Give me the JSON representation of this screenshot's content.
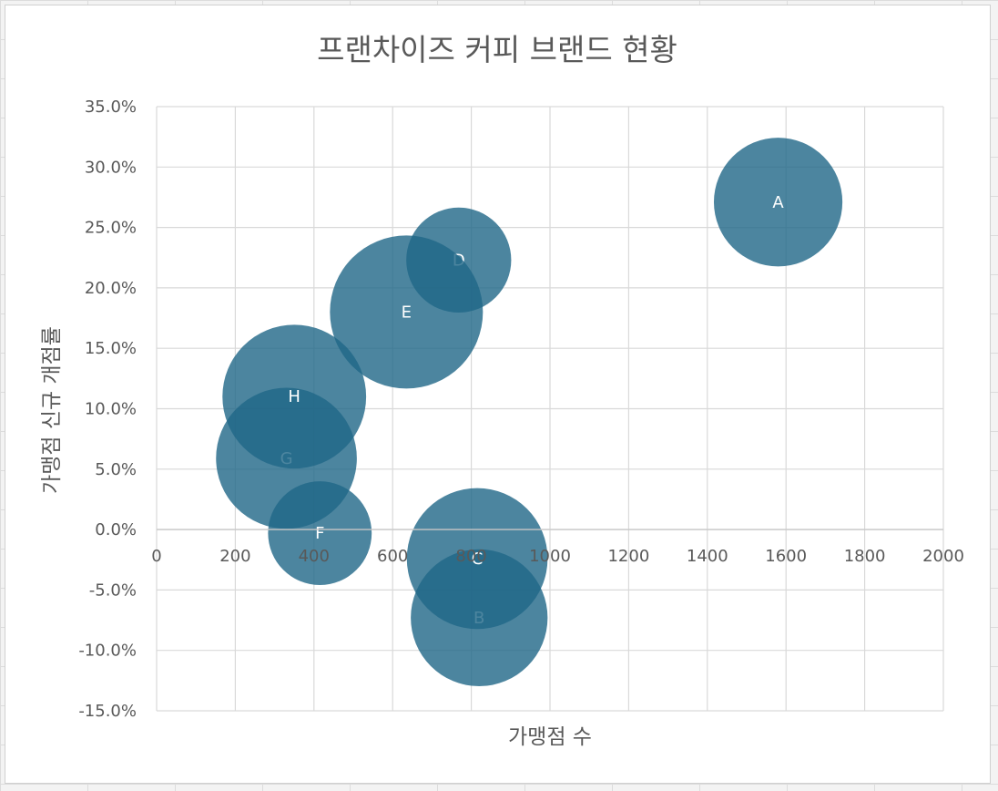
{
  "chart_data": {
    "type": "bubble",
    "title": "프랜차이즈 커피 브랜드 현황",
    "xlabel": "가맹점 수",
    "ylabel": "가맹점 신규 개점률",
    "xlim": [
      0,
      2000
    ],
    "ylim": [
      -0.15,
      0.35
    ],
    "x_ticks": [
      "0",
      "200",
      "400",
      "600",
      "800",
      "1000",
      "1200",
      "1400",
      "1600",
      "1800",
      "2000"
    ],
    "y_ticks": [
      "35.0%",
      "30.0%",
      "25.0%",
      "20.0%",
      "15.0%",
      "10.0%",
      "5.0%",
      "0.0%",
      "-5.0%",
      "-10.0%",
      "-15.0%"
    ],
    "grid": true,
    "bubble_color": "#1f6687",
    "points": [
      {
        "label": "A",
        "x": 1580,
        "y": 0.271,
        "size": 0.6
      },
      {
        "label": "B",
        "x": 820,
        "y": -0.073,
        "size": 0.68
      },
      {
        "label": "C",
        "x": 815,
        "y": -0.024,
        "size": 0.72
      },
      {
        "label": "D",
        "x": 768,
        "y": 0.223,
        "size": 0.4
      },
      {
        "label": "E",
        "x": 635,
        "y": 0.18,
        "size": 0.85
      },
      {
        "label": "F",
        "x": 415,
        "y": -0.003,
        "size": 0.39
      },
      {
        "label": "G",
        "x": 330,
        "y": 0.059,
        "size": 0.72
      },
      {
        "label": "H",
        "x": 350,
        "y": 0.11,
        "size": 0.75
      }
    ]
  }
}
